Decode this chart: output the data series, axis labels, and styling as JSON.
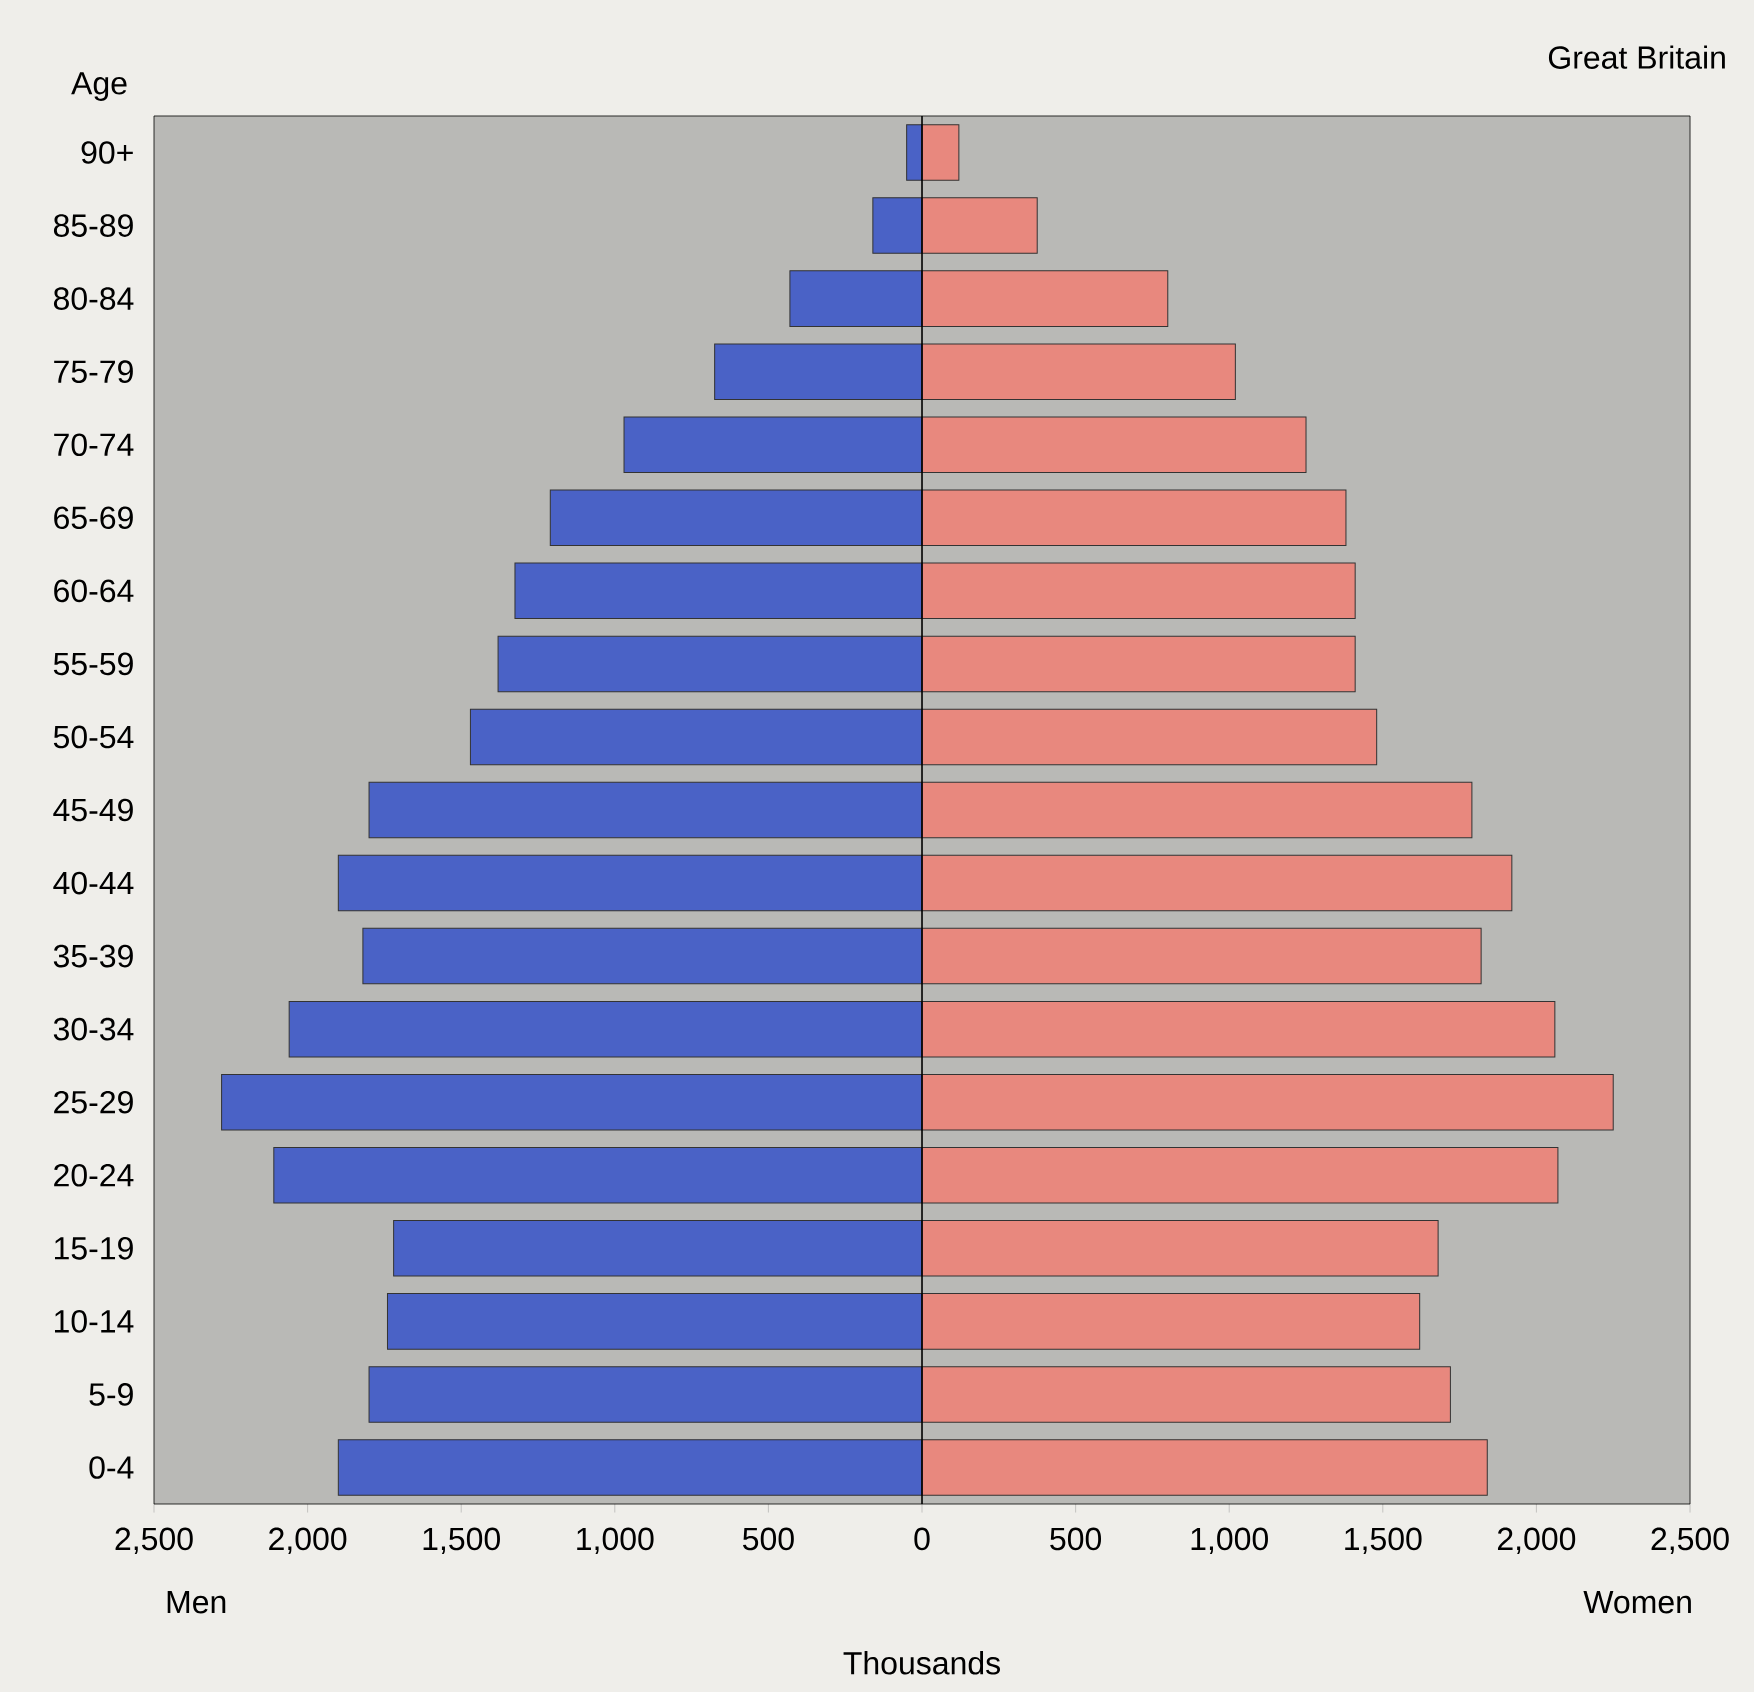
{
  "chart_data": {
    "type": "bar",
    "orientation": "horizontal",
    "subtitle": "Great Britain",
    "ylabel": "Age",
    "annotations": [
      "Men",
      "Women",
      "Thousands"
    ],
    "categories": [
      "90+",
      "85-89",
      "80-84",
      "75-79",
      "70-74",
      "65-69",
      "60-64",
      "55-59",
      "50-54",
      "45-49",
      "40-44",
      "35-39",
      "30-34",
      "25-29",
      "20-24",
      "15-19",
      "10-14",
      "5-9",
      "0-4"
    ],
    "series": [
      {
        "color": "#4a62c6",
        "values": [
          -50,
          -160,
          -430,
          -675,
          -970,
          -1210,
          -1325,
          -1380,
          -1470,
          -1800,
          -1900,
          -1820,
          -2060,
          -2280,
          -2110,
          -1720,
          -1740,
          -1800,
          -1900
        ]
      },
      {
        "color": "#e8887e",
        "values": [
          120,
          375,
          800,
          1020,
          1250,
          1380,
          1410,
          1410,
          1480,
          1790,
          1920,
          1820,
          2060,
          2250,
          2070,
          1680,
          1620,
          1720,
          1840
        ]
      }
    ],
    "xlim": [
      -2500,
      2500
    ],
    "xticks": [
      {
        "value": -2500,
        "label": "2,500"
      },
      {
        "value": -2000,
        "label": "2,000"
      },
      {
        "value": -1500,
        "label": "1,500"
      },
      {
        "value": -1000,
        "label": "1,000"
      },
      {
        "value": -500,
        "label": "500"
      },
      {
        "value": 0,
        "label": "0"
      },
      {
        "value": 500,
        "label": "500"
      },
      {
        "value": 1000,
        "label": "1,000"
      },
      {
        "value": 1500,
        "label": "1,500"
      },
      {
        "value": 2000,
        "label": "2,000"
      },
      {
        "value": 2500,
        "label": "2,500"
      }
    ],
    "ref_lines": [
      {
        "axis": "x",
        "value": 0,
        "color": "#000000"
      }
    ],
    "stacked": true,
    "grid": false
  }
}
